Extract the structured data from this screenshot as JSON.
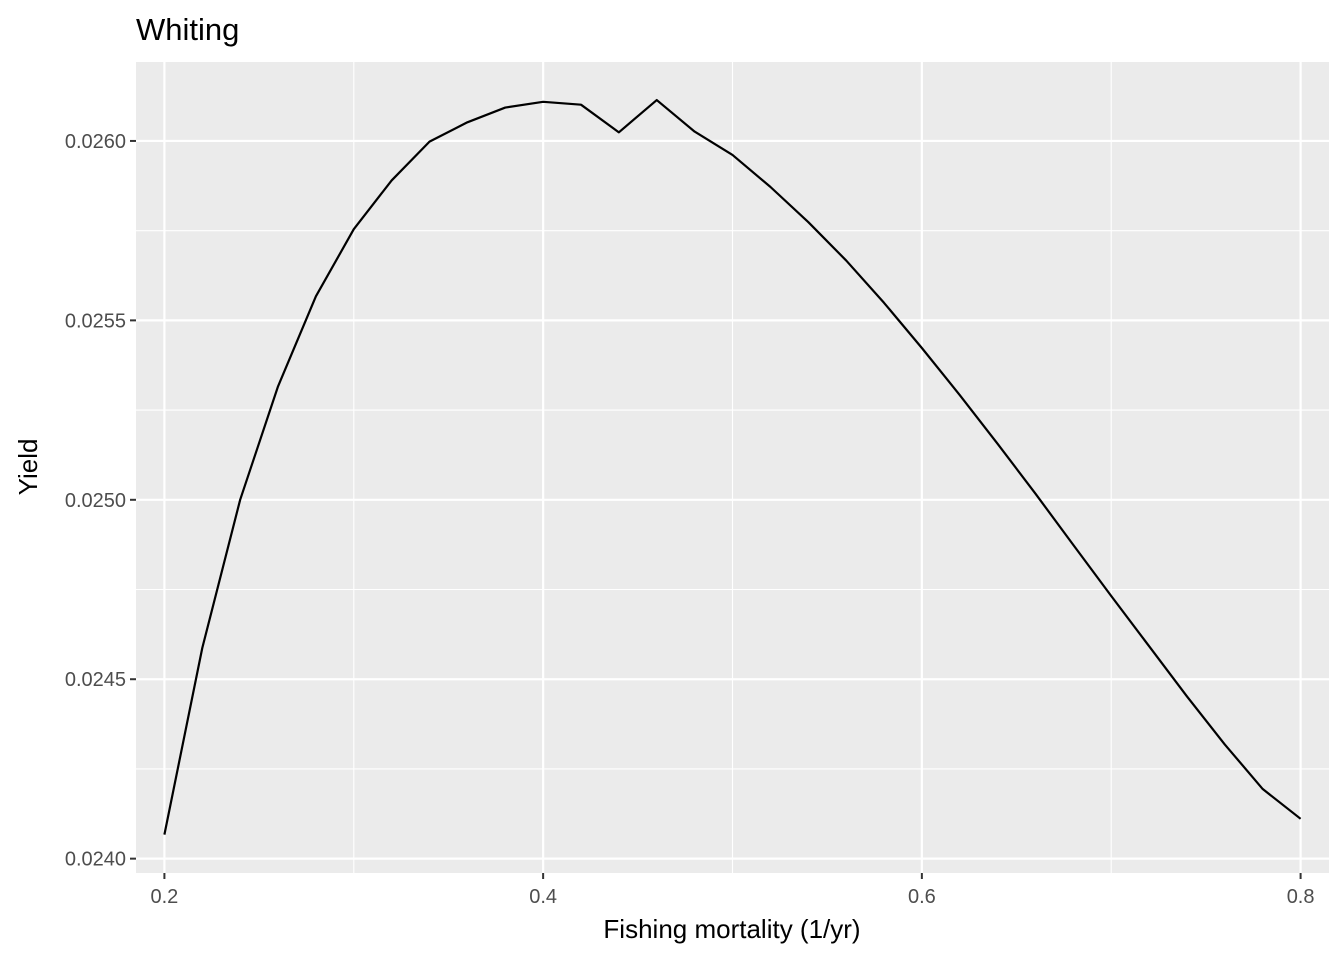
{
  "chart_data": {
    "type": "line",
    "title": "Whiting",
    "xlabel": "Fishing mortality (1/yr)",
    "ylabel": "Yield",
    "xlim": [
      0.185,
      0.815
    ],
    "ylim": [
      0.02396,
      0.02622
    ],
    "x_ticks": [
      0.2,
      0.4,
      0.6,
      0.8
    ],
    "x_tick_labels": [
      "0.2",
      "0.4",
      "0.6",
      "0.8"
    ],
    "y_ticks": [
      0.024,
      0.0245,
      0.025,
      0.0255,
      0.026
    ],
    "y_tick_labels": [
      "0.0240",
      "0.0245",
      "0.0250",
      "0.0255",
      "0.0260"
    ],
    "grid": true,
    "legend": "none",
    "colors": {
      "panel_background": "#ebebeb",
      "grid_line": "#ffffff",
      "series_line": "#000000",
      "tick_label": "#4d4d4d",
      "tick_mark": "#333333"
    },
    "series": [
      {
        "x": [
          0.2,
          0.22,
          0.24,
          0.26,
          0.28,
          0.3,
          0.32,
          0.34,
          0.36,
          0.38,
          0.4,
          0.42,
          0.44,
          0.46,
          0.48,
          0.5,
          0.52,
          0.54,
          0.56,
          0.58,
          0.6,
          0.62,
          0.64,
          0.66,
          0.68,
          0.7,
          0.72,
          0.74,
          0.76,
          0.78,
          0.8
        ],
        "values": [
          0.024067,
          0.024587,
          0.025,
          0.025316,
          0.025567,
          0.025754,
          0.02589,
          0.025998,
          0.026052,
          0.026093,
          0.026109,
          0.026101,
          0.026024,
          0.026114,
          0.026026,
          0.025961,
          0.025872,
          0.025774,
          0.025667,
          0.025549,
          0.025423,
          0.025292,
          0.025156,
          0.025017,
          0.024874,
          0.024732,
          0.024592,
          0.024452,
          0.024318,
          0.024194,
          0.024111
        ]
      }
    ]
  }
}
